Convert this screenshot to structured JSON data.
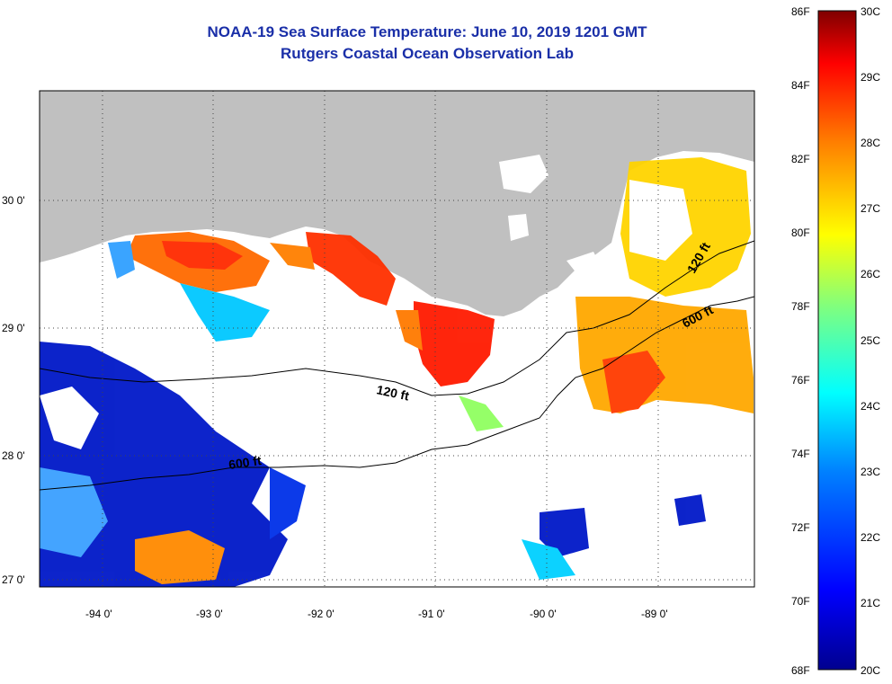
{
  "title": {
    "line1": "NOAA-19 Sea Surface Temperature:  June 10, 2019 1201 GMT",
    "line2": "Rutgers Coastal Ocean Observation Lab"
  },
  "axes": {
    "lat_ticks": [
      "30 0'",
      "29 0'",
      "28 0'",
      "27 0'"
    ],
    "lon_ticks": [
      "-94 0'",
      "-93 0'",
      "-92 0'",
      "-91 0'",
      "-90 0'",
      "-89 0'"
    ]
  },
  "contours": {
    "label_120_west": "120 ft",
    "label_600_west": "600 ft",
    "label_120_east": "120 ft",
    "label_600_east": "600 ft"
  },
  "colorbar": {
    "f_labels": [
      "86F",
      "84F",
      "82F",
      "80F",
      "78F",
      "76F",
      "74F",
      "72F",
      "70F",
      "68F"
    ],
    "c_labels": [
      "30C",
      "29C",
      "28C",
      "27C",
      "26C",
      "25C",
      "24C",
      "23C",
      "22C",
      "21C",
      "20C"
    ],
    "colors": [
      "#7f0000",
      "#ff0000",
      "#ff7f00",
      "#ffff00",
      "#7fff7f",
      "#00ffff",
      "#0080ff",
      "#0000ff",
      "#00008f"
    ]
  },
  "colors": {
    "land": "#c0c0c0",
    "ocean_nodata": "#ffffff"
  }
}
